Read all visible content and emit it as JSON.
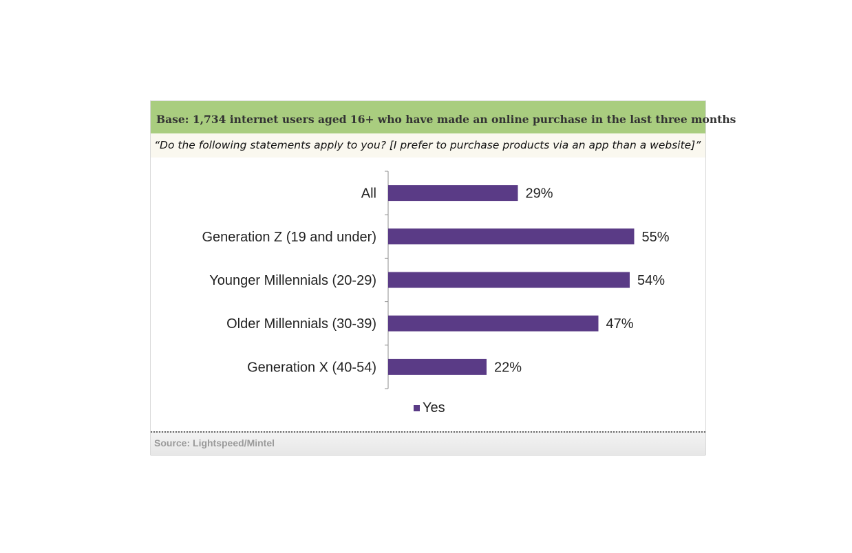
{
  "header": {
    "base_text": "Base: 1,734 internet users aged 16+ who have made an online purchase in the last three months",
    "question_text": "“Do the following statements apply to you? [I prefer to purchase products via an app than a website]”"
  },
  "footer": {
    "source_text": "Source: Lightspeed/Mintel"
  },
  "colors": {
    "bar": "#5a3b86",
    "base_bar": "#a9cd7f"
  },
  "chart_data": {
    "type": "bar",
    "orientation": "horizontal",
    "categories": [
      "All",
      "Generation Z (19 and under)",
      "Younger Millennials (20-29)",
      "Older Millennials (30-39)",
      "Generation X (40-54)"
    ],
    "series": [
      {
        "name": "Yes",
        "values": [
          29,
          55,
          54,
          47,
          22
        ],
        "labels": [
          "29%",
          "55%",
          "54%",
          "47%",
          "22%"
        ]
      }
    ],
    "xlim": [
      0,
      100
    ],
    "value_unit": "%",
    "grid": false,
    "legend": "bottom-center"
  }
}
